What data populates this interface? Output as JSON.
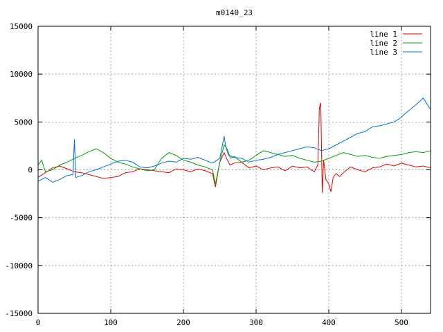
{
  "chart_data": {
    "type": "line",
    "title": "m0140_23",
    "xlabel": "",
    "ylabel": "",
    "xlim": [
      0,
      540
    ],
    "ylim": [
      -15000,
      15000
    ],
    "xticks": [
      0,
      100,
      200,
      300,
      400,
      500
    ],
    "yticks": [
      -15000,
      -10000,
      -5000,
      0,
      5000,
      10000,
      15000
    ],
    "grid": true,
    "legend_position": "top-right",
    "series": [
      {
        "name": "line 1",
        "color": "#e00000",
        "x": [
          0,
          10,
          20,
          30,
          40,
          50,
          60,
          70,
          80,
          90,
          100,
          110,
          120,
          130,
          140,
          150,
          160,
          170,
          180,
          190,
          200,
          210,
          220,
          230,
          240,
          244,
          250,
          256,
          260,
          264,
          270,
          280,
          290,
          300,
          310,
          320,
          330,
          340,
          350,
          360,
          370,
          380,
          385,
          387,
          389,
          391,
          393,
          396,
          400,
          403,
          406,
          410,
          415,
          420,
          430,
          440,
          450,
          460,
          470,
          480,
          490,
          500,
          510,
          520,
          530,
          540
        ],
        "y": [
          -800,
          -300,
          200,
          400,
          100,
          -200,
          -300,
          -500,
          -700,
          -900,
          -800,
          -700,
          -300,
          -200,
          100,
          0,
          -100,
          -200,
          -300,
          100,
          0,
          -200,
          100,
          -100,
          -400,
          -1800,
          800,
          1800,
          1100,
          500,
          700,
          800,
          200,
          400,
          0,
          200,
          300,
          -100,
          400,
          200,
          300,
          -200,
          500,
          6500,
          7000,
          -2400,
          1000,
          -1000,
          -1500,
          -2300,
          -800,
          -400,
          -700,
          -300,
          300,
          0,
          -200,
          200,
          300,
          600,
          400,
          700,
          500,
          300,
          400,
          200
        ]
      },
      {
        "name": "line 2",
        "color": "#00a000",
        "x": [
          0,
          5,
          10,
          20,
          30,
          40,
          50,
          60,
          70,
          80,
          90,
          100,
          110,
          120,
          130,
          140,
          150,
          160,
          170,
          180,
          190,
          200,
          210,
          220,
          230,
          240,
          244,
          250,
          256,
          260,
          265,
          270,
          280,
          290,
          300,
          310,
          320,
          330,
          340,
          350,
          360,
          370,
          380,
          390,
          400,
          410,
          420,
          430,
          440,
          450,
          460,
          470,
          480,
          490,
          500,
          510,
          520,
          530,
          540
        ],
        "y": [
          500,
          1000,
          -200,
          0,
          500,
          800,
          1200,
          1500,
          1900,
          2200,
          1800,
          1200,
          800,
          600,
          300,
          100,
          -100,
          0,
          1200,
          1800,
          1500,
          1000,
          800,
          500,
          300,
          0,
          -1500,
          800,
          2600,
          2200,
          1200,
          1400,
          800,
          1000,
          1500,
          2000,
          1800,
          1600,
          1400,
          1500,
          1200,
          1000,
          800,
          900,
          1200,
          1500,
          1800,
          1600,
          1400,
          1500,
          1300,
          1200,
          1400,
          1500,
          1600,
          1800,
          1900,
          1800,
          2000
        ]
      },
      {
        "name": "line 3",
        "color": "#0070d0",
        "x": [
          0,
          10,
          20,
          30,
          40,
          48,
          50,
          52,
          60,
          70,
          80,
          90,
          100,
          110,
          120,
          130,
          140,
          150,
          160,
          170,
          180,
          190,
          200,
          210,
          220,
          230,
          240,
          250,
          256,
          258,
          262,
          270,
          280,
          290,
          300,
          310,
          320,
          330,
          340,
          350,
          360,
          370,
          380,
          390,
          400,
          410,
          420,
          430,
          440,
          450,
          460,
          470,
          480,
          490,
          500,
          510,
          520,
          530,
          540
        ],
        "y": [
          -1200,
          -800,
          -1300,
          -1000,
          -600,
          -500,
          3200,
          -800,
          -600,
          -200,
          0,
          300,
          600,
          900,
          1000,
          800,
          300,
          200,
          400,
          700,
          900,
          800,
          1200,
          1100,
          1300,
          1000,
          700,
          1200,
          3500,
          2500,
          1500,
          1300,
          1200,
          800,
          1000,
          1100,
          1300,
          1600,
          1800,
          2000,
          2200,
          2400,
          2300,
          2000,
          2200,
          2600,
          3000,
          3400,
          3800,
          4000,
          4500,
          4600,
          4800,
          5000,
          5500,
          6200,
          6800,
          7500,
          6300
        ]
      }
    ]
  }
}
